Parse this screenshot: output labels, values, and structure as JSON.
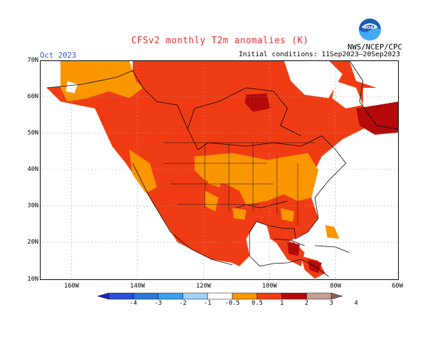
{
  "title": "CFSv2 monthly T2m anomalies (K)",
  "month": "Oct 2023",
  "initial_conditions": "Initial conditions: 11Sep2023–20Sep2023",
  "credit": "NWS/NCEP/CPC",
  "logo_text": "NOAA",
  "lat_labels": [
    "70N",
    "60N",
    "50N",
    "40N",
    "30N",
    "20N",
    "10N"
  ],
  "lon_labels": [
    "160W",
    "140W",
    "120W",
    "100W",
    "80W",
    "60W"
  ],
  "colorbar": {
    "labels": [
      "-4",
      "-3",
      "-2",
      "-1",
      "-0.5",
      "0.5",
      "1",
      "2",
      "3",
      "4"
    ],
    "colors": [
      "#1e1ec8",
      "#2850dc",
      "#2878dc",
      "#3ca0f0",
      "#a0d2fa",
      "#ffffff",
      "#fa9600",
      "#f03c14",
      "#b40a0a",
      "#c8a096",
      "#8c6450"
    ]
  },
  "colors": {
    "band_0_5_1": "#fa9600",
    "band_1_2": "#f03c14",
    "band_2_3": "#b40a0a",
    "title": "#e03030",
    "month": "#3355cc"
  }
}
